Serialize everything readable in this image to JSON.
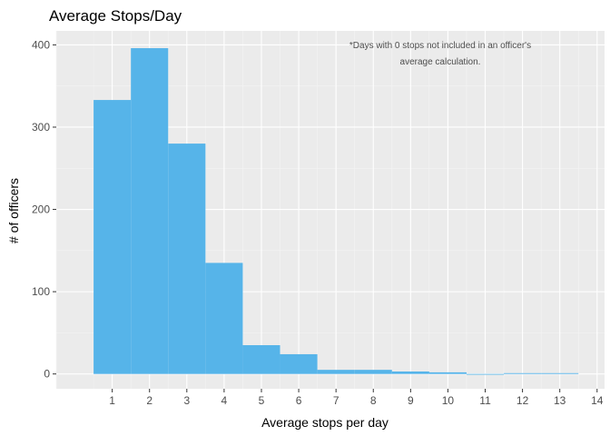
{
  "chart_data": {
    "type": "bar",
    "title": "Average Stops/Day",
    "xlabel": "Average stops per day",
    "ylabel": "# of officers",
    "annotation": [
      "*Days with 0 stops not included in an officer's",
      "average calculation."
    ],
    "bin_width": 1,
    "bin_centers": [
      1,
      2,
      3,
      4,
      5,
      6,
      7,
      8,
      9,
      10,
      11,
      12,
      13
    ],
    "values": [
      333,
      396,
      280,
      135,
      35,
      24,
      5,
      5,
      3,
      2,
      0,
      1,
      1
    ],
    "xlim": [
      -0.5,
      14.2
    ],
    "ylim": [
      -18,
      417
    ],
    "x_ticks": [
      1,
      2,
      3,
      4,
      5,
      6,
      7,
      8,
      9,
      10,
      11,
      12,
      13,
      14
    ],
    "y_ticks": [
      0,
      100,
      200,
      300,
      400
    ],
    "grid": true,
    "colors": {
      "bar": "#56b4e9",
      "panel": "#ebebeb",
      "grid_major": "#ffffff",
      "grid_minor": "#f4f4f4"
    }
  }
}
